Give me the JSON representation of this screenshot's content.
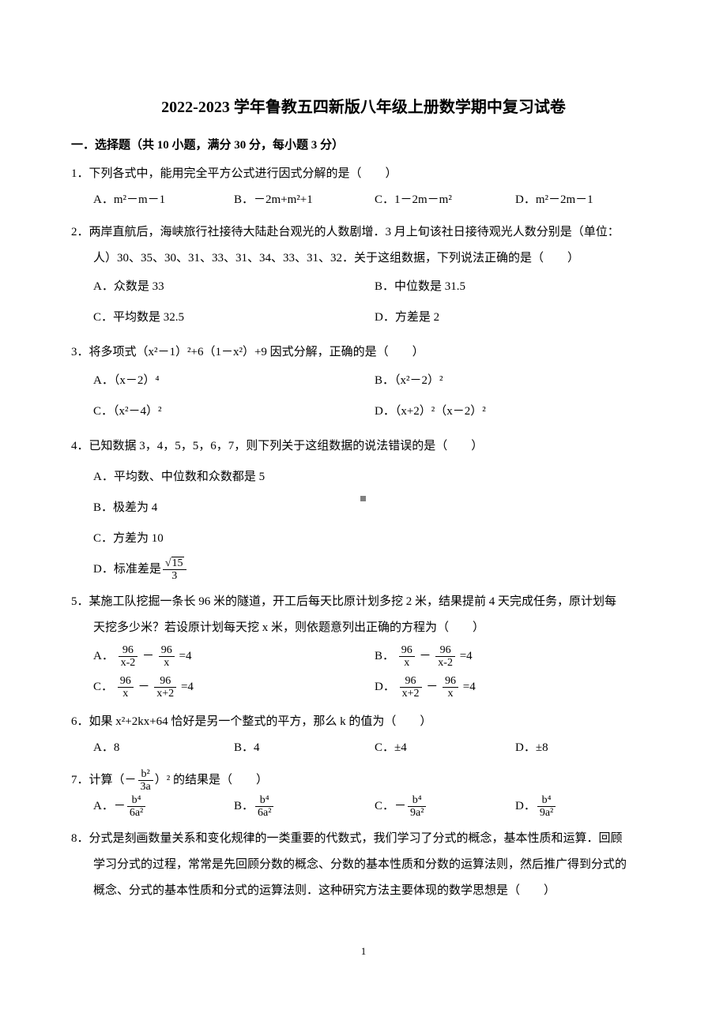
{
  "title": "2022-2023 学年鲁教五四新版八年级上册数学期中复习试卷",
  "section": "一．选择题（共 10 小题，满分 30 分，每小题 3 分）",
  "pageNumber": "1",
  "q1": {
    "text": "1．下列各式中，能用完全平方公式进行因式分解的是（　　）",
    "A": "A．m²－m－1",
    "B": "B．－2m+m²+1",
    "C": "C．1－2m－m²",
    "D": "D．m²－2m－1"
  },
  "q2": {
    "line1": "2．两岸直航后，海峡旅行社接待大陆赴台观光的人数剧增．3 月上旬该社日接待观光人数分别是（单位：",
    "line2": "人）30、35、30、31、33、31、34、33、31、32．关于这组数据，下列说法正确的是（　　）",
    "A": "A．众数是 33",
    "B": "B．中位数是 31.5",
    "C": "C．平均数是 32.5",
    "D": "D．方差是 2"
  },
  "q3": {
    "text": "3．将多项式（x²－1）²+6（1－x²）+9 因式分解，正确的是（　　）",
    "A": "A．（x－2）⁴",
    "B": "B．（x²－2）²",
    "C": "C．（x²－4）²",
    "D": "D．（x+2）²（x－2）²"
  },
  "q4": {
    "text": "4．已知数据 3，4，5，5，6，7，则下列关于这组数据的说法错误的是（　　）",
    "A": "A．平均数、中位数和众数都是 5",
    "B": "B．极差为 4",
    "C": "C．方差为 10",
    "D_pre": "D．标准差是",
    "D_num": "√15",
    "D_den": "3"
  },
  "q5": {
    "line1": "5．某施工队挖掘一条长 96 米的隧道，开工后每天比原计划多挖 2 米，结果提前 4 天完成任务，原计划每",
    "line2": "天挖多少米？若设原计划每天挖 x 米，则依题意列出正确的方程为（　　）",
    "A_pre": "A．",
    "A_n1": "96",
    "A_d1": "x-2",
    "A_mid": "－",
    "A_n2": "96",
    "A_d2": "x",
    "A_post": "=4",
    "B_pre": "B．",
    "B_n1": "96",
    "B_d1": "x",
    "B_mid": "－",
    "B_n2": "96",
    "B_d2": "x-2",
    "B_post": "=4",
    "C_pre": "C．",
    "C_n1": "96",
    "C_d1": "x",
    "C_mid": "－",
    "C_n2": "96",
    "C_d2": "x+2",
    "C_post": "=4",
    "D_pre": "D．",
    "D_n1": "96",
    "D_d1": "x+2",
    "D_mid": "－",
    "D_n2": "96",
    "D_d2": "x",
    "D_post": "=4"
  },
  "q6": {
    "text": "6．如果 x²+2kx+64 恰好是另一个整式的平方，那么 k 的值为（　　）",
    "A": "A．8",
    "B": "B．4",
    "C": "C．±4",
    "D": "D．±8"
  },
  "q7": {
    "pre": "7．计算（－",
    "arg_num": "b²",
    "arg_den": "3a",
    "post": "）² 的结果是（　　）",
    "A_pre": "A．－",
    "A_num": "b⁴",
    "A_den": "6a²",
    "B_pre": "B．",
    "B_num": "b⁴",
    "B_den": "6a²",
    "C_pre": "C．－",
    "C_num": "b⁴",
    "C_den": "9a²",
    "D_pre": "D．",
    "D_num": "b⁴",
    "D_den": "9a²"
  },
  "q8": {
    "line1": "8．分式是刻画数量关系和变化规律的一类重要的代数式，我们学习了分式的概念，基本性质和运算．回顾",
    "line2": "学习分式的过程，常常是先回顾分数的概念、分数的基本性质和分数的运算法则，然后推广得到分式的",
    "line3": "概念、分式的基本性质和分式的运算法则．这种研究方法主要体现的数学思想是（　　）"
  }
}
